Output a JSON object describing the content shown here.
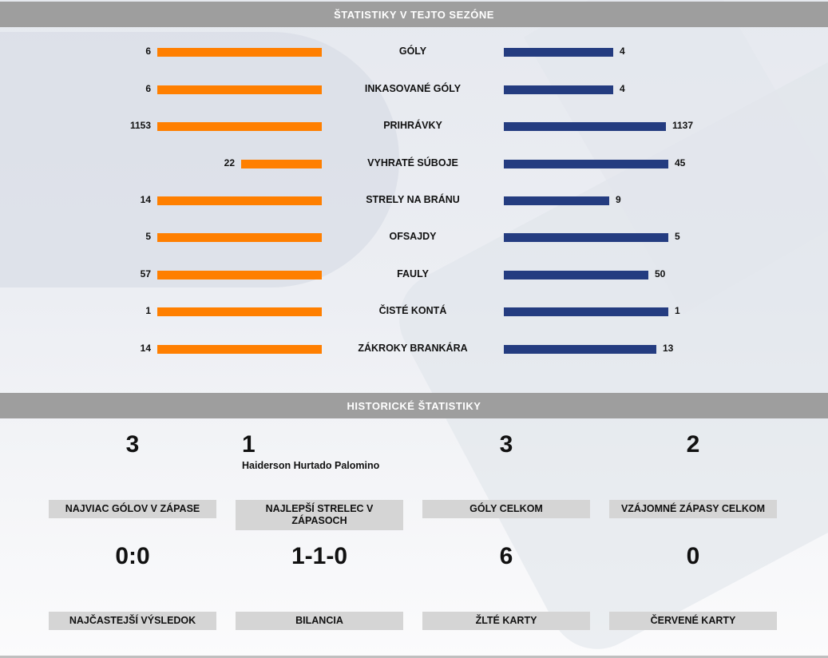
{
  "season": {
    "title": "ŠTATISTIKY V TEJTO SEZÓNE",
    "max_value_scale": 45,
    "colors": {
      "home": "#ff7f00",
      "away": "#243c80"
    },
    "rows": [
      {
        "label": "GÓLY",
        "home": 6,
        "away": 4,
        "home_ratio": 1.0,
        "away_ratio": 0.667
      },
      {
        "label": "INKASOVANÉ GÓLY",
        "home": 6,
        "away": 4,
        "home_ratio": 1.0,
        "away_ratio": 0.667
      },
      {
        "label": "PRIHRÁVKY",
        "home": 1153,
        "away": 1137,
        "home_ratio": 1.0,
        "away_ratio": 0.986
      },
      {
        "label": "VYHRATÉ SÚBOJE",
        "home": 22,
        "away": 45,
        "home_ratio": 0.489,
        "away_ratio": 1.0
      },
      {
        "label": "STRELY NA BRÁNU",
        "home": 14,
        "away": 9,
        "home_ratio": 1.0,
        "away_ratio": 0.643
      },
      {
        "label": "OFSAJDY",
        "home": 5,
        "away": 5,
        "home_ratio": 1.0,
        "away_ratio": 1.0
      },
      {
        "label": "FAULY",
        "home": 57,
        "away": 50,
        "home_ratio": 1.0,
        "away_ratio": 0.877
      },
      {
        "label": "ČISTÉ KONTÁ",
        "home": 1,
        "away": 1,
        "home_ratio": 1.0,
        "away_ratio": 1.0
      },
      {
        "label": "ZÁKROKY BRANKÁRA",
        "home": 14,
        "away": 13,
        "home_ratio": 1.0,
        "away_ratio": 0.929
      }
    ]
  },
  "history": {
    "title": "HISTORICKÉ ŠTATISTIKY",
    "cells": [
      {
        "value": "3",
        "label": "NAJVIAC GÓLOV V ZÁPASE"
      },
      {
        "value": "1",
        "sub": "Haiderson Hurtado Palomino",
        "label": "NAJLEPŠÍ STRELEC V ZÁPASOCH"
      },
      {
        "value": "3",
        "label": "GÓLY CELKOM"
      },
      {
        "value": "2",
        "label": "VZÁJOMNÉ ZÁPASY CELKOM"
      },
      {
        "value": "0:0",
        "label": "NAJČASTEJŠÍ VÝSLEDOK"
      },
      {
        "value": "1-1-0",
        "label": "BILANCIA"
      },
      {
        "value": "6",
        "label": "ŽLTÉ KARTY"
      },
      {
        "value": "0",
        "label": "ČERVENÉ KARTY"
      }
    ]
  }
}
